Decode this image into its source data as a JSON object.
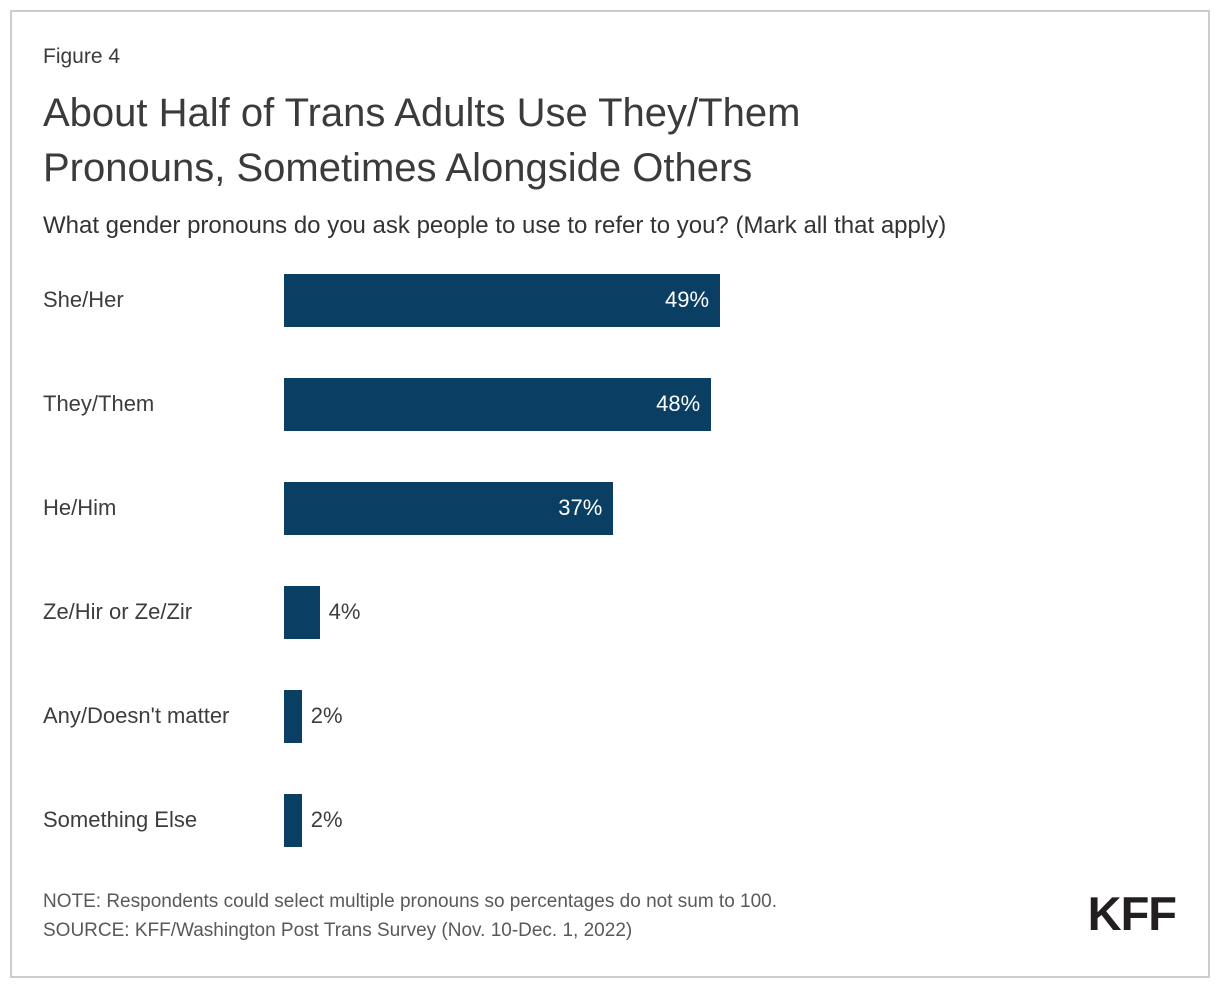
{
  "figure_label": "Figure 4",
  "title": "About Half of Trans Adults Use They/Them\nPronouns, Sometimes Alongside Others",
  "subtitle": "What gender pronouns do you ask people to use to refer to you? (Mark all that apply)",
  "chart_data": {
    "type": "bar",
    "orientation": "horizontal",
    "categories": [
      "She/Her",
      "They/Them",
      "He/Him",
      "Ze/Hir or Ze/Zir",
      "Any/Doesn't matter",
      "Something Else"
    ],
    "values": [
      49,
      48,
      37,
      4,
      2,
      2
    ],
    "value_labels": [
      "49%",
      "48%",
      "37%",
      "4%",
      "2%",
      "2%"
    ],
    "xlim": [
      0,
      100
    ],
    "grid": "off",
    "axis_ticks": "none",
    "bar_color": "#0a3e62",
    "inside_label_color": "#ffffff",
    "outside_label_color": "#3d3d3d",
    "inside_label_threshold": 10
  },
  "note": "NOTE: Respondents could select multiple pronouns so percentages do not sum to 100.",
  "source": "SOURCE: KFF/Washington Post Trans Survey (Nov. 10-Dec. 1, 2022)",
  "logo_text": "KFF",
  "colors": {
    "bar": "#0a3e62",
    "title_text": "#3b3b3b",
    "note_text": "#58595b",
    "frame_border": "#cccccc",
    "background": "#ffffff"
  }
}
